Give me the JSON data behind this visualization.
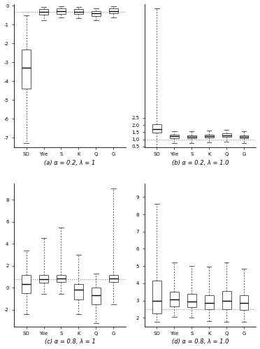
{
  "titles": [
    "(a) α = 0.2, λ = 1",
    "(b) α = 0.2, λ = 1.0",
    "(c) α = 0.8, λ = 1",
    "(d) α = 0.8, λ = 1.0"
  ],
  "xlabels": [
    "SO",
    "Yile",
    "S",
    "K",
    "Q",
    "G"
  ],
  "panels": [
    {
      "ylim": [
        -7.5,
        0.1
      ],
      "hline": -0.3,
      "yticks": [
        -7,
        -6,
        -5,
        -4,
        -3,
        -2,
        -1,
        0
      ],
      "yticklabels": [
        "-7",
        "-6",
        "-5",
        "-4",
        "-3",
        "-2",
        "-1",
        "0"
      ],
      "boxes": [
        {
          "med": -3.3,
          "q1": -4.4,
          "q3": -2.3,
          "whislo": -7.3,
          "whishi": -0.5,
          "mean": -3.3
        },
        {
          "med": -0.32,
          "q1": -0.48,
          "q3": -0.18,
          "whislo": -0.75,
          "whishi": -0.07,
          "mean": -0.32
        },
        {
          "med": -0.28,
          "q1": -0.42,
          "q3": -0.15,
          "whislo": -0.6,
          "whishi": -0.03,
          "mean": -0.28
        },
        {
          "med": -0.3,
          "q1": -0.44,
          "q3": -0.16,
          "whislo": -0.65,
          "whishi": -0.04,
          "mean": -0.3
        },
        {
          "med": -0.4,
          "q1": -0.55,
          "q3": -0.27,
          "whislo": -0.75,
          "whishi": -0.13,
          "mean": -0.4
        },
        {
          "med": -0.27,
          "q1": -0.4,
          "q3": -0.13,
          "whislo": -0.6,
          "whishi": -0.02,
          "mean": -0.27
        }
      ]
    },
    {
      "ylim": [
        0.45,
        10.5
      ],
      "hline": 1.0,
      "yticks": [
        0.5,
        1.0,
        1.5,
        2.0,
        2.5
      ],
      "yticklabels": [
        "0.5",
        "1.0",
        "1.5",
        "2.0",
        "2.5"
      ],
      "boxes": [
        {
          "med": 1.72,
          "q1": 1.48,
          "q3": 2.08,
          "whislo": 0.42,
          "whishi": 10.2,
          "mean": 1.72
        },
        {
          "med": 1.2,
          "q1": 1.1,
          "q3": 1.3,
          "whislo": 0.72,
          "whishi": 1.58,
          "mean": 1.2
        },
        {
          "med": 1.18,
          "q1": 1.08,
          "q3": 1.28,
          "whislo": 0.75,
          "whishi": 1.55,
          "mean": 1.18
        },
        {
          "med": 1.22,
          "q1": 1.12,
          "q3": 1.32,
          "whislo": 0.78,
          "whishi": 1.6,
          "mean": 1.22
        },
        {
          "med": 1.28,
          "q1": 1.16,
          "q3": 1.4,
          "whislo": 0.82,
          "whishi": 1.65,
          "mean": 1.28
        },
        {
          "med": 1.18,
          "q1": 1.08,
          "q3": 1.28,
          "whislo": 0.75,
          "whishi": 1.55,
          "mean": 1.18
        }
      ]
    },
    {
      "ylim": [
        -3.5,
        9.5
      ],
      "hline": 0.8,
      "yticks": [
        -2,
        0,
        2,
        4,
        6,
        8
      ],
      "yticklabels": [
        "-2",
        "0",
        "2",
        "4",
        "6",
        "8"
      ],
      "boxes": [
        {
          "med": 0.35,
          "q1": -0.45,
          "q3": 1.15,
          "whislo": -2.35,
          "whishi": 3.4,
          "mean": 0.35
        },
        {
          "med": 0.82,
          "q1": 0.5,
          "q3": 1.15,
          "whislo": -0.55,
          "whishi": 4.5,
          "mean": 0.82
        },
        {
          "med": 0.85,
          "q1": 0.55,
          "q3": 1.2,
          "whislo": -0.55,
          "whishi": 5.5,
          "mean": 0.85
        },
        {
          "med": -0.18,
          "q1": -1.05,
          "q3": 0.35,
          "whislo": -2.35,
          "whishi": 3.0,
          "mean": -0.18
        },
        {
          "med": -0.7,
          "q1": -1.5,
          "q3": 0.05,
          "whislo": -3.2,
          "whishi": 1.3,
          "mean": -0.7
        },
        {
          "med": 0.88,
          "q1": 0.55,
          "q3": 1.2,
          "whislo": -1.5,
          "whishi": 9.0,
          "mean": 0.88
        }
      ]
    },
    {
      "ylim": [
        1.5,
        9.8
      ],
      "hline": 2.5,
      "yticks": [
        2,
        3,
        4,
        5,
        6,
        7,
        8,
        9
      ],
      "yticklabels": [
        "2",
        "3",
        "4",
        "5",
        "6",
        "7",
        "8",
        "9"
      ],
      "boxes": [
        {
          "med": 3.0,
          "q1": 2.25,
          "q3": 4.15,
          "whislo": 1.75,
          "whishi": 8.6,
          "mean": 3.0
        },
        {
          "med": 3.05,
          "q1": 2.65,
          "q3": 3.5,
          "whislo": 2.05,
          "whishi": 5.2,
          "mean": 3.05
        },
        {
          "med": 2.95,
          "q1": 2.6,
          "q3": 3.38,
          "whislo": 2.0,
          "whishi": 5.0,
          "mean": 2.95
        },
        {
          "med": 2.88,
          "q1": 2.5,
          "q3": 3.32,
          "whislo": 1.8,
          "whishi": 4.95,
          "mean": 2.88
        },
        {
          "med": 3.0,
          "q1": 2.5,
          "q3": 3.55,
          "whislo": 1.75,
          "whishi": 5.2,
          "mean": 3.0
        },
        {
          "med": 2.88,
          "q1": 2.45,
          "q3": 3.3,
          "whislo": 1.75,
          "whishi": 4.85,
          "mean": 2.88
        }
      ]
    }
  ]
}
